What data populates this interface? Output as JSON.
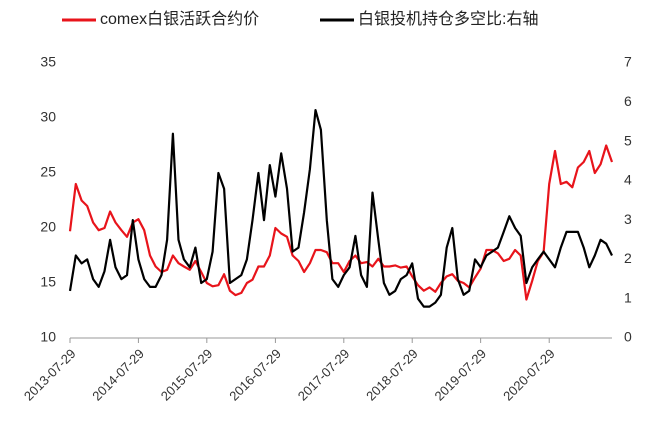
{
  "chart_data": {
    "type": "line",
    "x": [
      "2013-07-29",
      "2013-08-29",
      "2013-09-29",
      "2013-10-29",
      "2013-11-29",
      "2013-12-29",
      "2014-01-29",
      "2014-02-28",
      "2014-03-29",
      "2014-04-29",
      "2014-05-29",
      "2014-06-29",
      "2014-07-29",
      "2014-08-29",
      "2014-09-29",
      "2014-10-29",
      "2014-11-29",
      "2014-12-29",
      "2015-01-29",
      "2015-02-28",
      "2015-03-29",
      "2015-04-29",
      "2015-05-29",
      "2015-06-29",
      "2015-07-29",
      "2015-08-29",
      "2015-09-29",
      "2015-10-29",
      "2015-11-29",
      "2015-12-29",
      "2016-01-29",
      "2016-02-28",
      "2016-03-29",
      "2016-04-29",
      "2016-05-29",
      "2016-06-29",
      "2016-07-29",
      "2016-08-29",
      "2016-09-29",
      "2016-10-29",
      "2016-11-29",
      "2016-12-29",
      "2017-01-29",
      "2017-02-28",
      "2017-03-29",
      "2017-04-29",
      "2017-05-29",
      "2017-06-29",
      "2017-07-29",
      "2017-08-29",
      "2017-09-29",
      "2017-10-29",
      "2017-11-29",
      "2017-12-29",
      "2018-01-29",
      "2018-02-28",
      "2018-03-29",
      "2018-04-29",
      "2018-05-29",
      "2018-06-29",
      "2018-07-29",
      "2018-08-29",
      "2018-09-29",
      "2018-10-29",
      "2018-11-29",
      "2018-12-29",
      "2019-01-29",
      "2019-02-28",
      "2019-03-29",
      "2019-04-29",
      "2019-05-29",
      "2019-06-29",
      "2019-07-29",
      "2019-08-29",
      "2019-09-29",
      "2019-10-29",
      "2019-11-29",
      "2019-12-29",
      "2020-01-29",
      "2020-02-28",
      "2020-03-29",
      "2020-04-29",
      "2020-05-29",
      "2020-06-29",
      "2020-07-29",
      "2020-08-29",
      "2020-09-29",
      "2020-10-29",
      "2020-11-29",
      "2020-12-29",
      "2021-01-29",
      "2021-02-28",
      "2021-03-29",
      "2021-04-29",
      "2021-05-29",
      "2021-06-29"
    ],
    "series": [
      {
        "name": "comex白银活跃合约价",
        "color": "#e8141b",
        "values": [
          19.7,
          24.0,
          22.5,
          22.0,
          20.5,
          19.8,
          20.0,
          21.5,
          20.5,
          19.8,
          19.2,
          20.5,
          20.8,
          19.8,
          17.5,
          16.5,
          16.0,
          16.2,
          17.5,
          16.8,
          16.5,
          16.2,
          17.0,
          16.0,
          15.0,
          14.7,
          14.8,
          15.8,
          14.3,
          13.9,
          14.1,
          15.0,
          15.3,
          16.5,
          16.5,
          17.5,
          20.0,
          19.5,
          19.2,
          17.5,
          17.0,
          16.0,
          16.8,
          18.0,
          18.0,
          17.8,
          16.8,
          16.8,
          16.0,
          17.0,
          17.5,
          16.8,
          16.9,
          16.5,
          17.2,
          16.5,
          16.5,
          16.6,
          16.4,
          16.5,
          15.6,
          14.8,
          14.3,
          14.6,
          14.2,
          15.0,
          15.6,
          15.8,
          15.2,
          15.0,
          14.6,
          15.5,
          16.3,
          18.0,
          18.0,
          17.7,
          17.0,
          17.2,
          18.0,
          17.5,
          13.5,
          15.2,
          17.0,
          17.8,
          24.0,
          27.0,
          24.0,
          24.2,
          23.7,
          25.5,
          26.0,
          27.0,
          25.0,
          25.8,
          27.5,
          26.0
        ]
      },
      {
        "name": "白银投机持仓多空比:右轴",
        "color": "#000000",
        "axis": "y2",
        "values": [
          1.2,
          2.1,
          1.9,
          2.0,
          1.5,
          1.3,
          1.7,
          2.5,
          1.8,
          1.5,
          1.6,
          3.0,
          2.0,
          1.5,
          1.3,
          1.3,
          1.6,
          2.5,
          5.2,
          2.5,
          2.0,
          1.8,
          2.3,
          1.4,
          1.5,
          2.2,
          4.2,
          3.8,
          1.4,
          1.5,
          1.6,
          2.0,
          3.0,
          4.2,
          3.0,
          4.4,
          3.6,
          4.7,
          3.8,
          2.2,
          2.3,
          3.2,
          4.3,
          5.8,
          5.3,
          3.0,
          1.5,
          1.3,
          1.6,
          1.8,
          2.6,
          1.6,
          1.3,
          3.7,
          2.5,
          1.4,
          1.1,
          1.2,
          1.5,
          1.6,
          1.9,
          1.0,
          0.8,
          0.8,
          0.9,
          1.1,
          2.3,
          2.8,
          1.5,
          1.1,
          1.2,
          2.0,
          1.8,
          2.1,
          2.2,
          2.3,
          2.7,
          3.1,
          2.8,
          2.6,
          1.4,
          1.8,
          2.0,
          2.2,
          2.0,
          1.8,
          2.3,
          2.7,
          2.7,
          2.7,
          2.3,
          1.8,
          2.1,
          2.5,
          2.4,
          2.1
        ]
      }
    ],
    "xlim": [
      "2013-07-29",
      "2021-06-29"
    ],
    "xticks": [
      "2013-07-29",
      "2014-07-29",
      "2015-07-29",
      "2016-07-29",
      "2017-07-29",
      "2018-07-29",
      "2019-07-29",
      "2020-07-29"
    ],
    "ylim": [
      10,
      35
    ],
    "yticks": [
      10,
      15,
      20,
      25,
      30,
      35
    ],
    "y2lim": [
      0,
      7
    ],
    "y2ticks": [
      0,
      1,
      2,
      3,
      4,
      5,
      6,
      7
    ],
    "legend": "top"
  }
}
